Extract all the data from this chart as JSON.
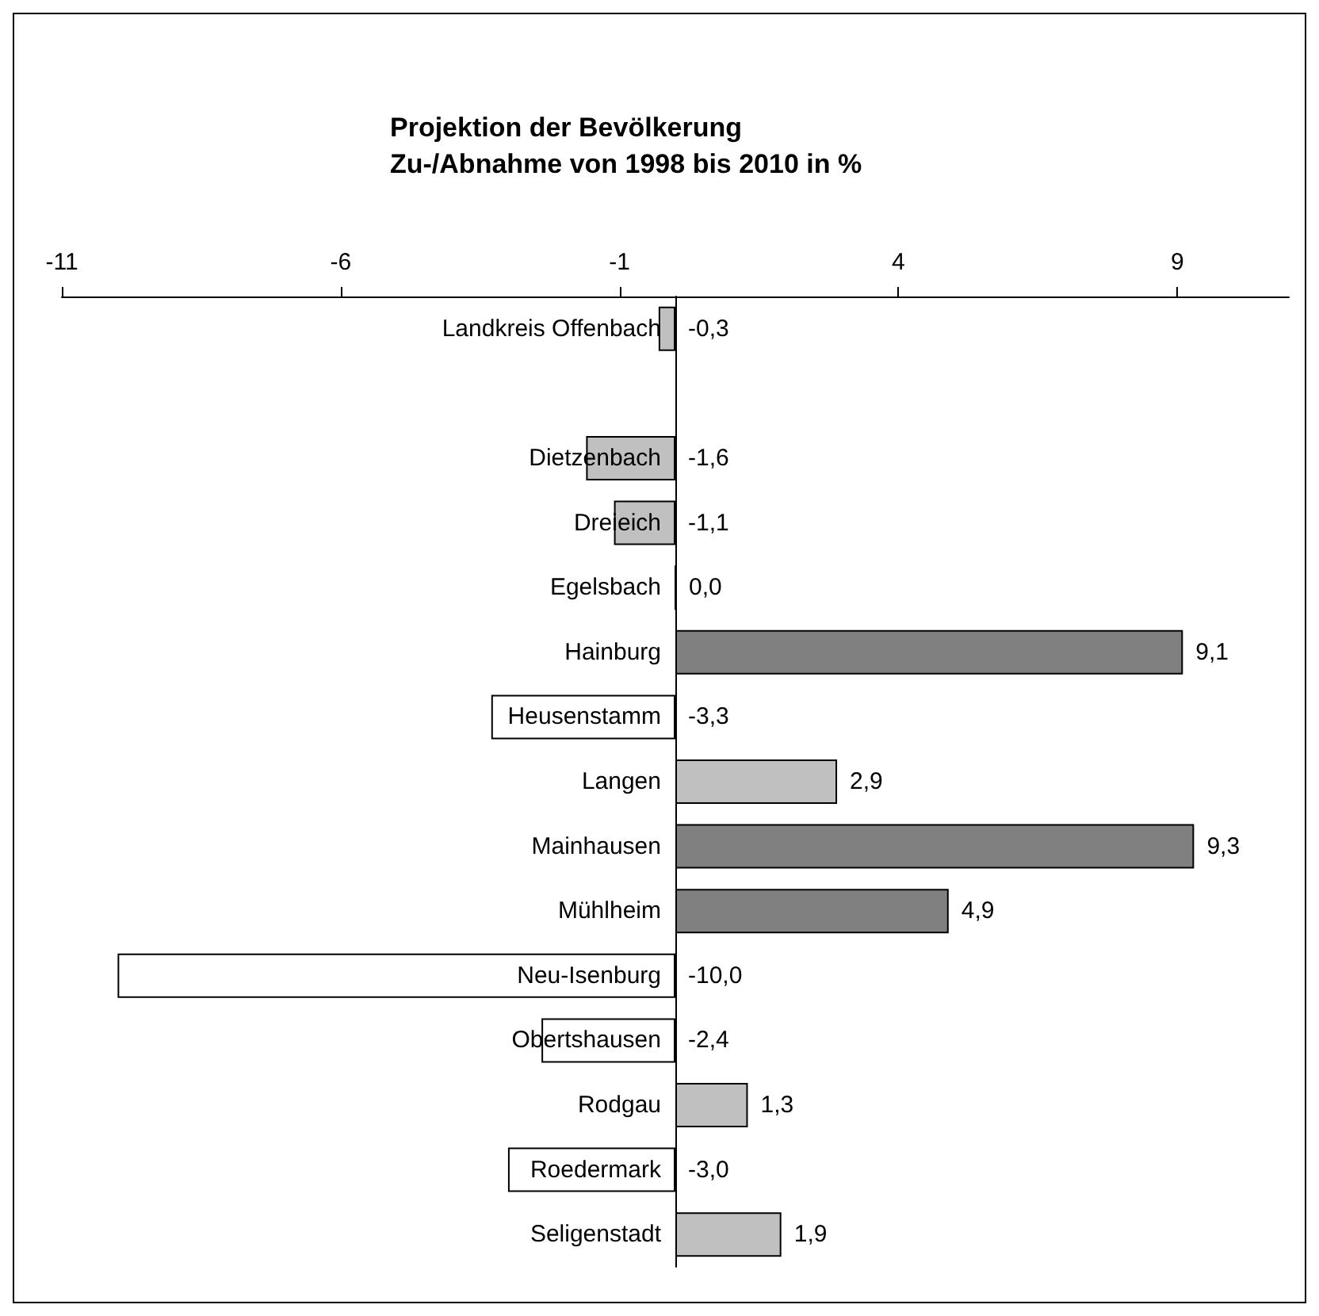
{
  "chart_data": {
    "type": "bar",
    "orientation": "horizontal",
    "title": "Projektion der Bevölkerung",
    "subtitle": "Zu-/Abnahme von 1998 bis 2010 in %",
    "categories": [
      "Landkreis Offenbach",
      null,
      "Dietzenbach",
      "Dreieich",
      "Egelsbach",
      "Hainburg",
      "Heusenstamm",
      "Langen",
      "Mainhausen",
      "Mühlheim",
      "Neu-Isenburg",
      "Obertshausen",
      "Rodgau",
      "Roedermark",
      "Seligenstadt"
    ],
    "values": [
      -0.3,
      null,
      -1.6,
      -1.1,
      0.0,
      9.1,
      -3.3,
      2.9,
      9.3,
      4.9,
      -10.0,
      -2.4,
      1.3,
      -3.0,
      1.9
    ],
    "value_labels": [
      "-0,3",
      null,
      "-1,6",
      "-1,1",
      "0,0",
      "9,1",
      "-3,3",
      "2,9",
      "9,3",
      "4,9",
      "-10,0",
      "-2,4",
      "1,3",
      "-3,0",
      "1,9"
    ],
    "colors": [
      "#c0c0c0",
      null,
      "#c0c0c0",
      "#c0c0c0",
      "#000000",
      "#808080",
      "#ffffff",
      "#c0c0c0",
      "#808080",
      "#808080",
      "#ffffff",
      "#ffffff",
      "#c0c0c0",
      "#ffffff",
      "#c0c0c0"
    ],
    "xlim": [
      -11,
      11
    ],
    "xticks": [
      -11,
      -6,
      -1,
      4,
      9
    ],
    "grid": false
  }
}
